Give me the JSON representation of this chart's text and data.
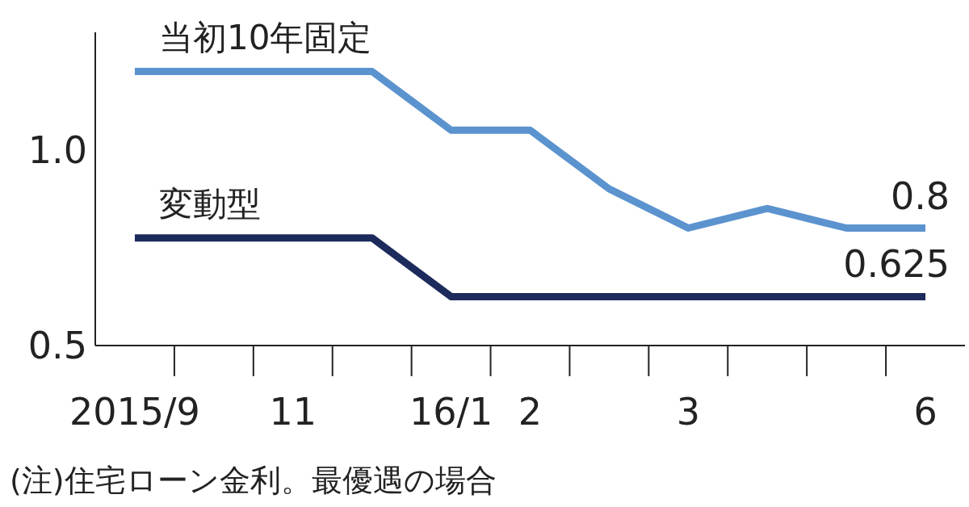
{
  "chart_data": {
    "type": "line",
    "categories": [
      "2015/9",
      null,
      "11",
      null,
      "16/1",
      "2",
      null,
      "3",
      null,
      null,
      "6"
    ],
    "series": [
      {
        "name": "当初10年固定",
        "color": "#5b93cf",
        "values": [
          1.2,
          1.2,
          1.2,
          1.2,
          1.05,
          1.05,
          0.9,
          0.8,
          0.85,
          0.8,
          0.8
        ],
        "value_labels": [
          null,
          null,
          null,
          null,
          null,
          null,
          null,
          null,
          null,
          null,
          "0.8"
        ]
      },
      {
        "name": "変動型",
        "color": "#1c2a5c",
        "values": [
          0.775,
          0.775,
          0.775,
          0.775,
          0.625,
          0.625,
          0.625,
          0.625,
          0.625,
          0.625,
          0.625
        ],
        "value_labels": [
          null,
          null,
          null,
          null,
          null,
          null,
          null,
          null,
          null,
          null,
          "0.625"
        ]
      }
    ],
    "ylim": [
      0.5,
      1.3
    ],
    "yticks": [
      {
        "value": 0.5,
        "label": "0.5"
      },
      {
        "value": 1.0,
        "label": "1.0"
      }
    ],
    "annotations": [
      "(注)住宅ローン金利。最優遇の場合"
    ]
  }
}
